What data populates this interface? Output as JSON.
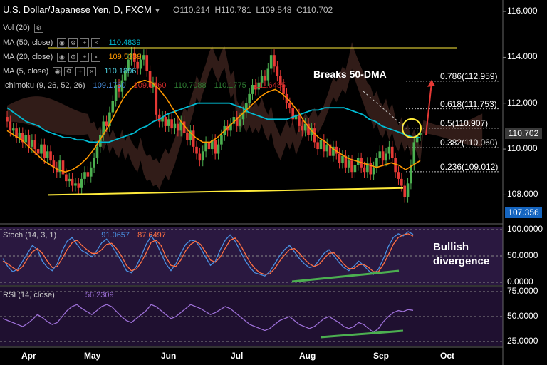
{
  "header": {
    "symbol": "U.S. Dollar/Japanese Yen, D, FXCM",
    "open": "O110.214",
    "high": "H110.781",
    "low": "L109.548",
    "close": "C110.702"
  },
  "indicators": {
    "vol": "Vol (20)",
    "ma50": {
      "label": "MA (50, close)",
      "value": "110.4839",
      "color": "#00bcd4"
    },
    "ma20": {
      "label": "MA (20, close)",
      "value": "109.5339",
      "color": "#ff9800"
    },
    "ma5": {
      "label": "MA (5, close)",
      "value": "110.1806",
      "color": "#00e5ff"
    },
    "ichimoku": {
      "label": "Ichimoku (9, 26, 52, 26)",
      "v1": "109.1760",
      "v2": "109.1760",
      "v3": "110.7088",
      "v4": "110.1775",
      "v5": "111.6485"
    }
  },
  "annotations": {
    "breaks": "Breaks 50-DMA",
    "bullish": "Bullish",
    "divergence": "divergence"
  },
  "fib_levels": [
    {
      "label": "0.786(112.959)",
      "price": 112.959
    },
    {
      "label": "0.618(111.753)",
      "price": 111.753
    },
    {
      "label": "0.5(110.907)",
      "price": 110.907
    },
    {
      "label": "0.382(110.060)",
      "price": 110.06
    },
    {
      "label": "0.236(109.012)",
      "price": 109.012
    }
  ],
  "price_tags": {
    "last": "110.702",
    "low": "107.356",
    "last_color": "#3a3a3a",
    "low_color": "#1565c0"
  },
  "stoch": {
    "label": "Stoch (14, 3, 1)",
    "k": "91.0657",
    "d": "87.6497"
  },
  "rsi": {
    "label": "RSI (14, close)",
    "value": "56.2309"
  },
  "chart_data": [
    {
      "type": "candlestick",
      "title": "U.S. Dollar/Japanese Yen, D, FXCM",
      "ylim": [
        106.8,
        116.5
      ],
      "yticks": [
        "116.000",
        "114.000",
        "112.000",
        "110.000",
        "108.000"
      ],
      "xticks": [
        "Apr",
        "May",
        "Jun",
        "Jul",
        "Aug",
        "Sep",
        "Oct"
      ],
      "close": [
        111.2,
        110.8,
        110.9,
        110.5,
        110.7,
        110.3,
        110.6,
        110.1,
        110.4,
        110.0,
        109.8,
        110.2,
        109.6,
        109.9,
        109.5,
        109.2,
        109.0,
        109.5,
        108.9,
        108.6,
        108.7,
        108.4,
        108.5,
        108.3,
        108.7,
        109.0,
        108.8,
        109.2,
        109.6,
        110.1,
        110.6,
        111.2,
        111.0,
        111.6,
        112.1,
        112.8,
        112.5,
        113.0,
        113.4,
        113.9,
        114.2,
        113.8,
        113.5,
        113.9,
        114.1,
        113.4,
        112.7,
        112.9,
        111.5,
        111.2,
        111.4,
        111.0,
        111.3,
        110.9,
        111.1,
        110.8,
        111.2,
        110.7,
        110.4,
        110.8,
        110.1,
        109.8,
        109.5,
        109.9,
        110.3,
        110.0,
        110.4,
        109.8,
        110.2,
        110.6,
        111.0,
        110.8,
        111.1,
        111.4,
        111.0,
        111.3,
        111.6,
        112.0,
        112.4,
        112.8,
        112.6,
        112.9,
        113.2,
        113.0,
        113.5,
        114.1,
        113.6,
        113.2,
        112.8,
        112.4,
        112.0,
        111.8,
        111.3,
        111.5,
        111.0,
        110.8,
        111.1,
        110.6,
        110.9,
        110.3,
        110.0,
        110.4,
        109.9,
        110.2,
        109.7,
        110.1,
        109.8,
        109.4,
        109.7,
        109.2,
        109.5,
        109.0,
        109.3,
        109.6,
        109.2,
        109.0,
        109.4,
        108.9,
        109.2,
        109.6,
        109.9,
        109.5,
        109.8,
        110.1,
        109.6,
        109.0,
        108.7,
        108.4,
        107.9,
        108.5,
        109.3,
        110.3,
        110.6,
        110.7
      ],
      "ma50": [
        111.8,
        111.6,
        111.4,
        111.2,
        111.1,
        111.0,
        110.8,
        110.7,
        110.6,
        110.5,
        110.5,
        110.4,
        110.4,
        110.3,
        110.3,
        110.3,
        110.3,
        110.4,
        110.5,
        110.6,
        110.7,
        110.9,
        111.0,
        111.2,
        111.3,
        111.5,
        111.6,
        111.7,
        111.8,
        111.9,
        112.0,
        112.0,
        112.0,
        112.0,
        112.0,
        112.0,
        111.9,
        111.8,
        111.6,
        111.5,
        111.4,
        111.3,
        111.3,
        111.3,
        111.3,
        111.4,
        111.5,
        111.6,
        111.7,
        111.7,
        111.8,
        111.8,
        111.8,
        111.8,
        111.7,
        111.6,
        111.5,
        111.3,
        111.2,
        111.0,
        110.9,
        110.8,
        110.7,
        110.6,
        110.5,
        110.5
      ],
      "ma20": [
        110.8,
        110.6,
        110.4,
        110.1,
        109.8,
        109.5,
        109.3,
        109.1,
        109.0,
        109.1,
        109.3,
        109.6,
        110.0,
        110.5,
        111.0,
        111.6,
        112.2,
        112.6,
        112.9,
        113.0,
        112.9,
        112.6,
        112.2,
        111.7,
        111.2,
        110.8,
        110.5,
        110.3,
        110.3,
        110.5,
        110.8,
        111.1,
        111.4,
        111.7,
        112.0,
        112.3,
        112.5,
        112.6,
        112.4,
        112.1,
        111.7,
        111.2,
        110.8,
        110.5,
        110.3,
        110.0,
        109.8,
        109.6,
        109.5,
        109.4,
        109.3,
        109.2,
        109.3,
        109.4,
        109.3,
        109.1,
        109.3,
        109.5
      ],
      "fib_support_line": [
        108.0,
        108.3
      ],
      "fib_resistance_line": [
        114.4,
        114.4
      ]
    },
    {
      "type": "line",
      "title": "Stoch (14, 3, 1)",
      "ylim": [
        0,
        100
      ],
      "yticks": [
        "100.0000",
        "50.0000",
        "0.0000"
      ],
      "series": [
        {
          "name": "%K",
          "values": [
            45,
            30,
            20,
            25,
            40,
            55,
            70,
            62,
            40,
            28,
            22,
            35,
            60,
            78,
            85,
            72,
            60,
            55,
            48,
            60,
            75,
            82,
            70,
            55,
            40,
            22,
            18,
            30,
            50,
            72,
            88,
            76,
            55,
            35,
            22,
            35,
            55,
            72,
            80,
            78,
            65,
            48,
            32,
            40,
            62,
            80,
            90,
            78,
            60,
            42,
            28,
            18,
            15,
            12,
            20,
            35,
            50,
            62,
            70,
            58,
            45,
            35,
            28,
            30,
            42,
            55,
            62,
            50,
            38,
            28,
            22,
            30,
            40,
            32,
            22,
            15,
            25,
            45,
            68,
            85,
            92,
            88,
            96,
            91
          ]
        },
        {
          "name": "%D",
          "values": [
            40,
            35,
            28,
            22,
            30,
            45,
            58,
            64,
            55,
            40,
            28,
            30,
            45,
            62,
            75,
            80,
            70,
            62,
            55,
            55,
            62,
            72,
            74,
            64,
            50,
            32,
            22,
            25,
            38,
            56,
            76,
            80,
            70,
            48,
            32,
            30,
            42,
            60,
            72,
            78,
            72,
            58,
            42,
            38,
            48,
            65,
            80,
            84,
            72,
            55,
            38,
            26,
            18,
            15,
            16,
            26,
            40,
            52,
            62,
            64,
            55,
            44,
            35,
            30,
            34,
            45,
            55,
            56,
            46,
            34,
            26,
            26,
            33,
            34,
            28,
            20,
            20,
            34,
            52,
            72,
            85,
            90,
            92,
            87.6
          ]
        }
      ]
    },
    {
      "type": "line",
      "title": "RSI (14, close)",
      "ylim": [
        20,
        80
      ],
      "yticks": [
        "75.0000",
        "50.0000",
        "25.0000"
      ],
      "series": [
        {
          "name": "RSI",
          "values": [
            48,
            46,
            44,
            42,
            40,
            43,
            47,
            52,
            49,
            45,
            42,
            44,
            50,
            56,
            60,
            62,
            58,
            55,
            52,
            56,
            60,
            62,
            60,
            55,
            50,
            46,
            44,
            48,
            52,
            56,
            62,
            60,
            56,
            52,
            48,
            50,
            54,
            58,
            62,
            60,
            58,
            55,
            52,
            54,
            57,
            60,
            58,
            54,
            50,
            46,
            42,
            40,
            38,
            36,
            38,
            42,
            46,
            48,
            50,
            46,
            42,
            40,
            38,
            40,
            44,
            48,
            50,
            47,
            44,
            40,
            38,
            40,
            44,
            42,
            38,
            34,
            38,
            45,
            50,
            54,
            56,
            55,
            57,
            56.2
          ]
        }
      ]
    }
  ]
}
